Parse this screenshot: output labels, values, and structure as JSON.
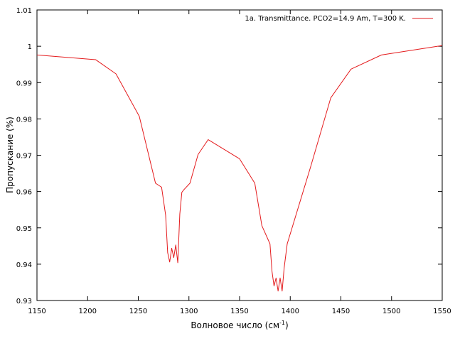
{
  "chart_data": {
    "type": "line",
    "xlabel_main": "Волновое число (см",
    "xlabel_sup": "-1",
    "xlabel_tail": ")",
    "ylabel": "Пропускание (%)",
    "xlim": [
      1150,
      1550
    ],
    "ylim": [
      0.93,
      1.01
    ],
    "x_ticks": [
      "1150",
      "1200",
      "1250",
      "1300",
      "1350",
      "1400",
      "1450",
      "1500",
      "1550"
    ],
    "y_ticks": [
      "0.93",
      "0.94",
      "0.95",
      "0.96",
      "0.97",
      "0.98",
      "0.99",
      "1",
      "1.01"
    ],
    "grid": false,
    "legend_position": "top-right",
    "series": [
      {
        "name": "1a. Transmittance. PCO2=14.9 Am, T=300 K.",
        "color": "#e41a1c",
        "x": [
          1150,
          1208,
          1228,
          1251,
          1267,
          1273,
          1277,
          1279,
          1281,
          1283,
          1285,
          1287,
          1289,
          1291,
          1293,
          1295,
          1301,
          1309,
          1319,
          1350,
          1365,
          1372,
          1380,
          1382,
          1384,
          1386,
          1388,
          1390,
          1392,
          1394,
          1397,
          1420,
          1440,
          1460,
          1490,
          1550
        ],
        "y": [
          0.9976,
          0.9963,
          0.9924,
          0.9807,
          0.9623,
          0.9612,
          0.9535,
          0.9432,
          0.9406,
          0.9444,
          0.9418,
          0.9453,
          0.9404,
          0.9538,
          0.9598,
          0.9605,
          0.9623,
          0.9702,
          0.9743,
          0.969,
          0.9623,
          0.9506,
          0.9456,
          0.938,
          0.934,
          0.9362,
          0.9326,
          0.9362,
          0.9326,
          0.939,
          0.9456,
          0.9667,
          0.9858,
          0.9937,
          0.9976,
          1.0002
        ]
      }
    ]
  }
}
